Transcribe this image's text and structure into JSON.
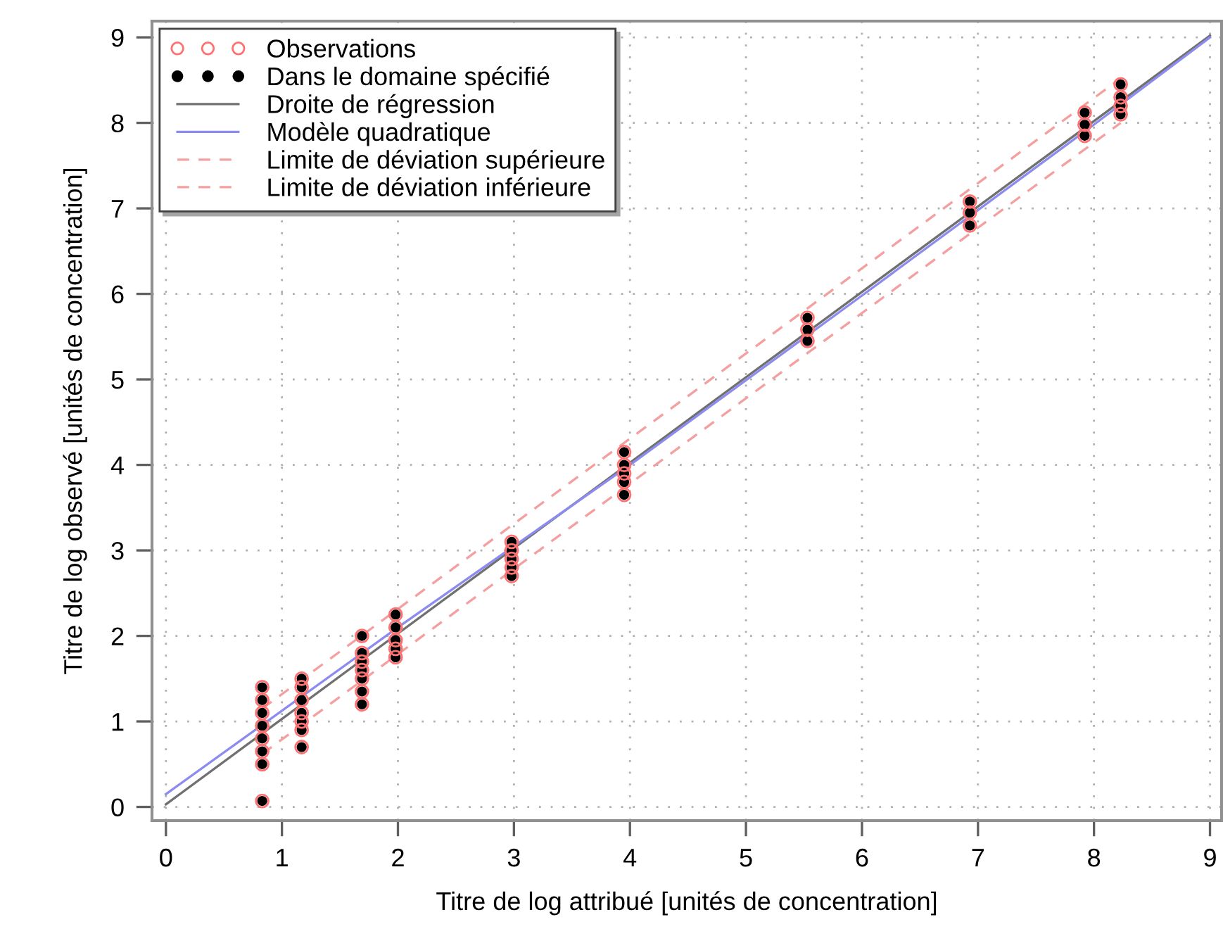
{
  "chart_data": {
    "type": "scatter",
    "xlabel": "Titre de log attribué [unités de concentration]",
    "ylabel": "Titre de log observé [unités de concentration]",
    "xlim": [
      -0.12,
      9.1
    ],
    "ylim": [
      -0.16,
      9.19
    ],
    "xticks": [
      0,
      1,
      2,
      3,
      4,
      5,
      6,
      7,
      8,
      9
    ],
    "yticks": [
      0,
      1,
      2,
      3,
      4,
      5,
      6,
      7,
      8,
      9
    ],
    "grid": true,
    "legend": "top left",
    "series": [
      {
        "name": "Observations",
        "marker": "circle",
        "color": "#ff7070",
        "x": [
          0.83,
          0.83,
          0.83,
          0.83,
          0.83,
          0.83,
          0.83,
          0.83,
          1.17,
          1.17,
          1.17,
          1.17,
          1.17,
          1.17,
          1.17,
          1.69,
          1.69,
          1.69,
          1.69,
          1.69,
          1.69,
          1.69,
          1.98,
          1.98,
          1.98,
          1.98,
          1.98,
          2.98,
          2.98,
          2.98,
          2.98,
          2.98,
          3.95,
          3.95,
          3.95,
          3.95,
          3.95,
          5.53,
          5.53,
          5.53,
          6.93,
          6.93,
          6.93,
          7.92,
          7.92,
          7.92,
          8.23,
          8.23,
          8.23,
          8.23
        ],
        "values": [
          0.07,
          0.5,
          0.65,
          0.8,
          0.95,
          1.1,
          1.25,
          1.4,
          0.7,
          0.9,
          1.0,
          1.1,
          1.25,
          1.4,
          1.5,
          1.2,
          1.35,
          1.5,
          1.6,
          1.7,
          1.8,
          2.0,
          1.75,
          1.85,
          1.95,
          2.1,
          2.25,
          2.7,
          2.8,
          2.9,
          3.0,
          3.1,
          3.65,
          3.8,
          3.9,
          4.0,
          4.15,
          5.45,
          5.58,
          5.72,
          6.8,
          6.95,
          7.08,
          7.85,
          7.98,
          8.12,
          8.1,
          8.2,
          8.3,
          8.45
        ]
      },
      {
        "name": "Dans le domaine spécifié",
        "marker": "circle",
        "color": "#000000",
        "x": [
          0.83,
          0.83,
          0.83,
          0.83,
          0.83,
          0.83,
          0.83,
          0.83,
          1.17,
          1.17,
          1.17,
          1.17,
          1.17,
          1.17,
          1.17,
          1.69,
          1.69,
          1.69,
          1.69,
          1.69,
          1.69,
          1.69,
          1.98,
          1.98,
          1.98,
          1.98,
          1.98,
          2.98,
          2.98,
          2.98,
          2.98,
          2.98,
          3.95,
          3.95,
          3.95,
          3.95,
          3.95,
          5.53,
          5.53,
          5.53,
          6.93,
          6.93,
          6.93,
          7.92,
          7.92,
          7.92,
          8.23,
          8.23,
          8.23,
          8.23
        ],
        "values": [
          0.07,
          0.5,
          0.65,
          0.8,
          0.95,
          1.1,
          1.25,
          1.4,
          0.7,
          0.9,
          1.0,
          1.1,
          1.25,
          1.4,
          1.5,
          1.2,
          1.35,
          1.5,
          1.6,
          1.7,
          1.8,
          2.0,
          1.75,
          1.85,
          1.95,
          2.1,
          2.25,
          2.7,
          2.8,
          2.9,
          3.0,
          3.1,
          3.65,
          3.8,
          3.9,
          4.0,
          4.15,
          5.45,
          5.58,
          5.72,
          6.8,
          6.95,
          7.08,
          7.85,
          7.98,
          8.12,
          8.1,
          8.2,
          8.3,
          8.45
        ]
      },
      {
        "name": "Droite de régression",
        "type": "line",
        "line_style": "solid",
        "color": "#707070",
        "x": [
          0,
          9
        ],
        "values": [
          0.03,
          9.02
        ]
      },
      {
        "name": "Modèle quadratique",
        "type": "line",
        "line_style": "solid",
        "color": "#8c8cf0",
        "x": [
          0,
          2,
          4,
          6,
          8,
          9
        ],
        "values": [
          0.15,
          2.1,
          4.0,
          5.98,
          7.98,
          9.0
        ]
      },
      {
        "name": "Limite de déviation supérieure",
        "type": "line",
        "line_style": "dashed",
        "color": "#f4a0a0",
        "x": [
          0.83,
          8.23
        ],
        "values": [
          1.15,
          8.52
        ]
      },
      {
        "name": "Limite de déviation inférieure",
        "type": "line",
        "line_style": "dashed",
        "color": "#f4a0a0",
        "x": [
          0.83,
          8.23
        ],
        "values": [
          0.62,
          8.0
        ]
      }
    ]
  }
}
